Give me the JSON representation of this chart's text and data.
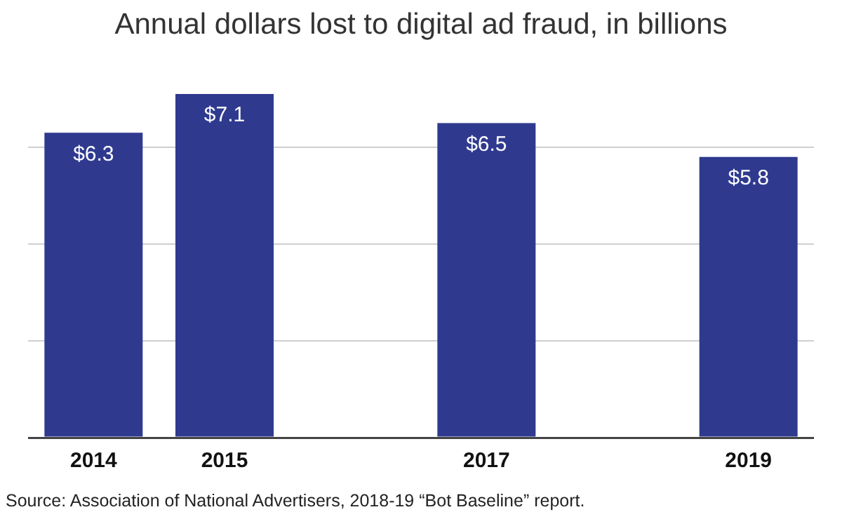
{
  "chart_data": {
    "type": "bar",
    "title": "Annual dollars lost to digital ad fraud, in billions",
    "categories": [
      "2014",
      "2015",
      null,
      "2017",
      null,
      "2019"
    ],
    "values": [
      6.3,
      7.1,
      null,
      6.5,
      null,
      5.8
    ],
    "value_labels": [
      "$6.3",
      "$7.1",
      null,
      "$6.5",
      null,
      "$5.8"
    ],
    "color": "#2f3a8f",
    "yticks": [
      {
        "value": 0,
        "label": null
      },
      {
        "value": 2,
        "label": null
      },
      {
        "value": 4,
        "label": null
      },
      {
        "value": 6,
        "label": null
      }
    ],
    "grid": "y",
    "tick_labels": "x",
    "annotations": [
      "Source: Association of National Advertisers, 2018-19 “Bot Baseline” report."
    ]
  }
}
